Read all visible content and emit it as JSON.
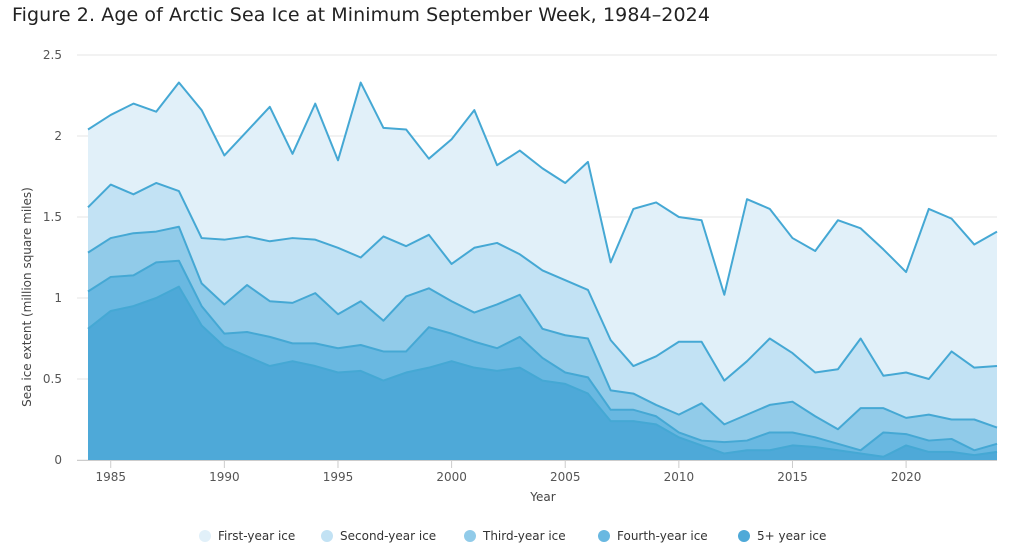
{
  "title": "Figure 2. Age of Arctic Sea Ice at Minimum September Week, 1984–2024",
  "chart_data": {
    "type": "area",
    "stacked": true,
    "xlabel": "Year",
    "ylabel": "Sea ice extent (million square miles)",
    "xlim": [
      1984,
      2024
    ],
    "ylim": [
      0,
      2.5
    ],
    "x_ticks": [
      "1985",
      "1990",
      "1995",
      "2000",
      "2005",
      "2010",
      "2015",
      "2020"
    ],
    "y_ticks": [
      "0",
      "0.5",
      "1",
      "1.5",
      "2",
      "2.5"
    ],
    "grid": "horizontal",
    "legend_position": "bottom",
    "x": [
      1984,
      1985,
      1986,
      1987,
      1988,
      1989,
      1990,
      1991,
      1992,
      1993,
      1994,
      1995,
      1996,
      1997,
      1998,
      1999,
      2000,
      2001,
      2002,
      2003,
      2004,
      2005,
      2006,
      2007,
      2008,
      2009,
      2010,
      2011,
      2012,
      2013,
      2014,
      2015,
      2016,
      2017,
      2018,
      2019,
      2020,
      2021,
      2022,
      2023,
      2024
    ],
    "series": [
      {
        "name": "5+ year ice",
        "color": "#4ea9d8",
        "cumulative": [
          0.81,
          0.92,
          0.95,
          1.0,
          1.07,
          0.83,
          0.7,
          0.64,
          0.58,
          0.61,
          0.58,
          0.54,
          0.55,
          0.49,
          0.54,
          0.57,
          0.61,
          0.57,
          0.55,
          0.57,
          0.49,
          0.47,
          0.41,
          0.24,
          0.24,
          0.22,
          0.14,
          0.09,
          0.04,
          0.06,
          0.06,
          0.09,
          0.08,
          0.06,
          0.04,
          0.02,
          0.09,
          0.05,
          0.05,
          0.03,
          0.05
        ]
      },
      {
        "name": "Fourth-year ice",
        "color": "#69b8e1",
        "cumulative": [
          1.04,
          1.13,
          1.14,
          1.22,
          1.23,
          0.95,
          0.78,
          0.79,
          0.76,
          0.72,
          0.72,
          0.69,
          0.71,
          0.67,
          0.67,
          0.82,
          0.78,
          0.73,
          0.69,
          0.76,
          0.63,
          0.54,
          0.51,
          0.31,
          0.31,
          0.27,
          0.17,
          0.12,
          0.11,
          0.12,
          0.17,
          0.17,
          0.14,
          0.1,
          0.06,
          0.17,
          0.16,
          0.12,
          0.13,
          0.06,
          0.1
        ]
      },
      {
        "name": "Third-year ice",
        "color": "#91cbe9",
        "cumulative": [
          1.28,
          1.37,
          1.4,
          1.41,
          1.44,
          1.09,
          0.96,
          1.08,
          0.98,
          0.97,
          1.03,
          0.9,
          0.98,
          0.86,
          1.01,
          1.06,
          0.98,
          0.91,
          0.96,
          1.02,
          0.81,
          0.77,
          0.75,
          0.43,
          0.41,
          0.34,
          0.28,
          0.35,
          0.22,
          0.28,
          0.34,
          0.36,
          0.27,
          0.19,
          0.32,
          0.32,
          0.26,
          0.28,
          0.25,
          0.25,
          0.2
        ]
      },
      {
        "name": "Second-year ice",
        "color": "#c2e2f4",
        "cumulative": [
          1.56,
          1.7,
          1.64,
          1.71,
          1.66,
          1.37,
          1.36,
          1.38,
          1.35,
          1.37,
          1.36,
          1.31,
          1.25,
          1.38,
          1.32,
          1.39,
          1.21,
          1.31,
          1.34,
          1.27,
          1.17,
          1.11,
          1.05,
          0.74,
          0.58,
          0.64,
          0.73,
          0.73,
          0.49,
          0.61,
          0.75,
          0.66,
          0.54,
          0.56,
          0.75,
          0.52,
          0.54,
          0.5,
          0.67,
          0.57,
          0.58
        ]
      },
      {
        "name": "First-year ice",
        "color": "#e1f0f9",
        "cumulative": [
          2.04,
          2.13,
          2.2,
          2.15,
          2.33,
          2.16,
          1.88,
          2.03,
          2.18,
          1.89,
          2.2,
          1.85,
          2.33,
          2.05,
          2.04,
          1.86,
          1.98,
          2.16,
          1.82,
          1.91,
          1.8,
          1.71,
          1.84,
          1.22,
          1.55,
          1.59,
          1.5,
          1.48,
          1.02,
          1.61,
          1.55,
          1.37,
          1.29,
          1.48,
          1.43,
          1.3,
          1.16,
          1.55,
          1.49,
          1.33,
          1.41
        ]
      }
    ],
    "line_color": "#45a8d4",
    "legend": [
      "First-year ice",
      "Second-year ice",
      "Third-year ice",
      "Fourth-year ice",
      "5+ year ice"
    ],
    "legend_colors": [
      "#e1f0f9",
      "#c2e2f4",
      "#91cbe9",
      "#69b8e1",
      "#4ea9d8"
    ]
  }
}
